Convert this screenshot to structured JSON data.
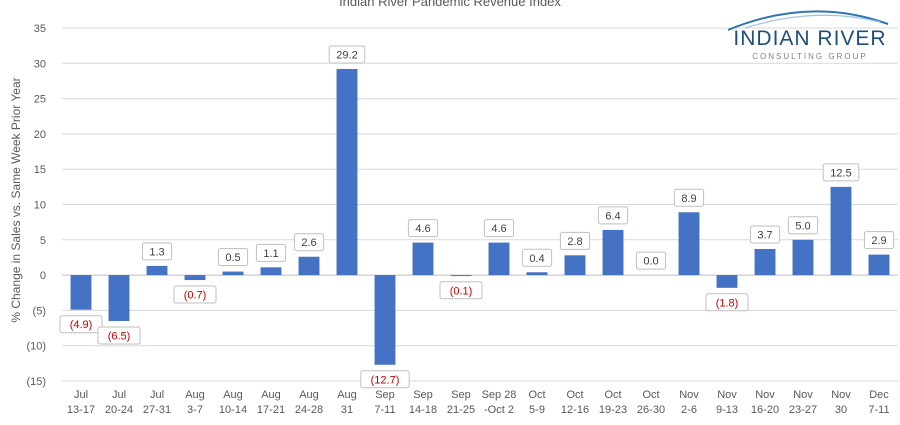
{
  "logo": {
    "name": "INDIAN RIVER",
    "tagline": "CONSULTING GROUP"
  },
  "chart_data": {
    "type": "bar",
    "title": "Indian River Pandemic Revenue Index",
    "ylabel": "% Change in Sales vs. Same Week Prior Year",
    "xlabel": "",
    "ylim": [
      -15,
      35
    ],
    "yticks": [
      35,
      30,
      25,
      20,
      15,
      10,
      5,
      0,
      -5,
      -10,
      -15
    ],
    "ytick_labels": [
      "35",
      "30",
      "25",
      "20",
      "15",
      "10",
      "5",
      "0",
      "(5)",
      "(10)",
      "(15)"
    ],
    "grid": true,
    "bar_color": "#4472c4",
    "negative_label_color": "#c00000",
    "categories": [
      [
        "Jul",
        "13-17"
      ],
      [
        "Jul",
        "20-24"
      ],
      [
        "Jul",
        "27-31"
      ],
      [
        "Aug",
        "3-7"
      ],
      [
        "Aug",
        "10-14"
      ],
      [
        "Aug",
        "17-21"
      ],
      [
        "Aug",
        "24-28"
      ],
      [
        "Aug",
        "31"
      ],
      [
        "Sep",
        "7-11"
      ],
      [
        "Sep",
        "14-18"
      ],
      [
        "Sep",
        "21-25"
      ],
      [
        "Sep 28",
        "-Oct 2"
      ],
      [
        "Oct",
        "5-9"
      ],
      [
        "Oct",
        "12-16"
      ],
      [
        "Oct",
        "19-23"
      ],
      [
        "Oct",
        "26-30"
      ],
      [
        "Nov",
        "2-6"
      ],
      [
        "Nov",
        "9-13"
      ],
      [
        "Nov",
        "16-20"
      ],
      [
        "Nov",
        "23-27"
      ],
      [
        "Nov",
        "30"
      ],
      [
        "Dec",
        "7-11"
      ]
    ],
    "values": [
      -4.9,
      -6.5,
      1.3,
      -0.7,
      0.5,
      1.1,
      2.6,
      29.2,
      -12.7,
      4.6,
      -0.1,
      4.6,
      0.4,
      2.8,
      6.4,
      0.0,
      8.9,
      -1.8,
      3.7,
      5.0,
      12.5,
      2.9
    ],
    "data_labels": [
      "(4.9)",
      "(6.5)",
      "1.3",
      "(0.7)",
      "0.5",
      "1.1",
      "2.6",
      "29.2",
      "(12.7)",
      "4.6",
      "(0.1)",
      "4.6",
      "0.4",
      "2.8",
      "6.4",
      "0.0",
      "8.9",
      "(1.8)",
      "3.7",
      "5.0",
      "12.5",
      "2.9"
    ]
  }
}
